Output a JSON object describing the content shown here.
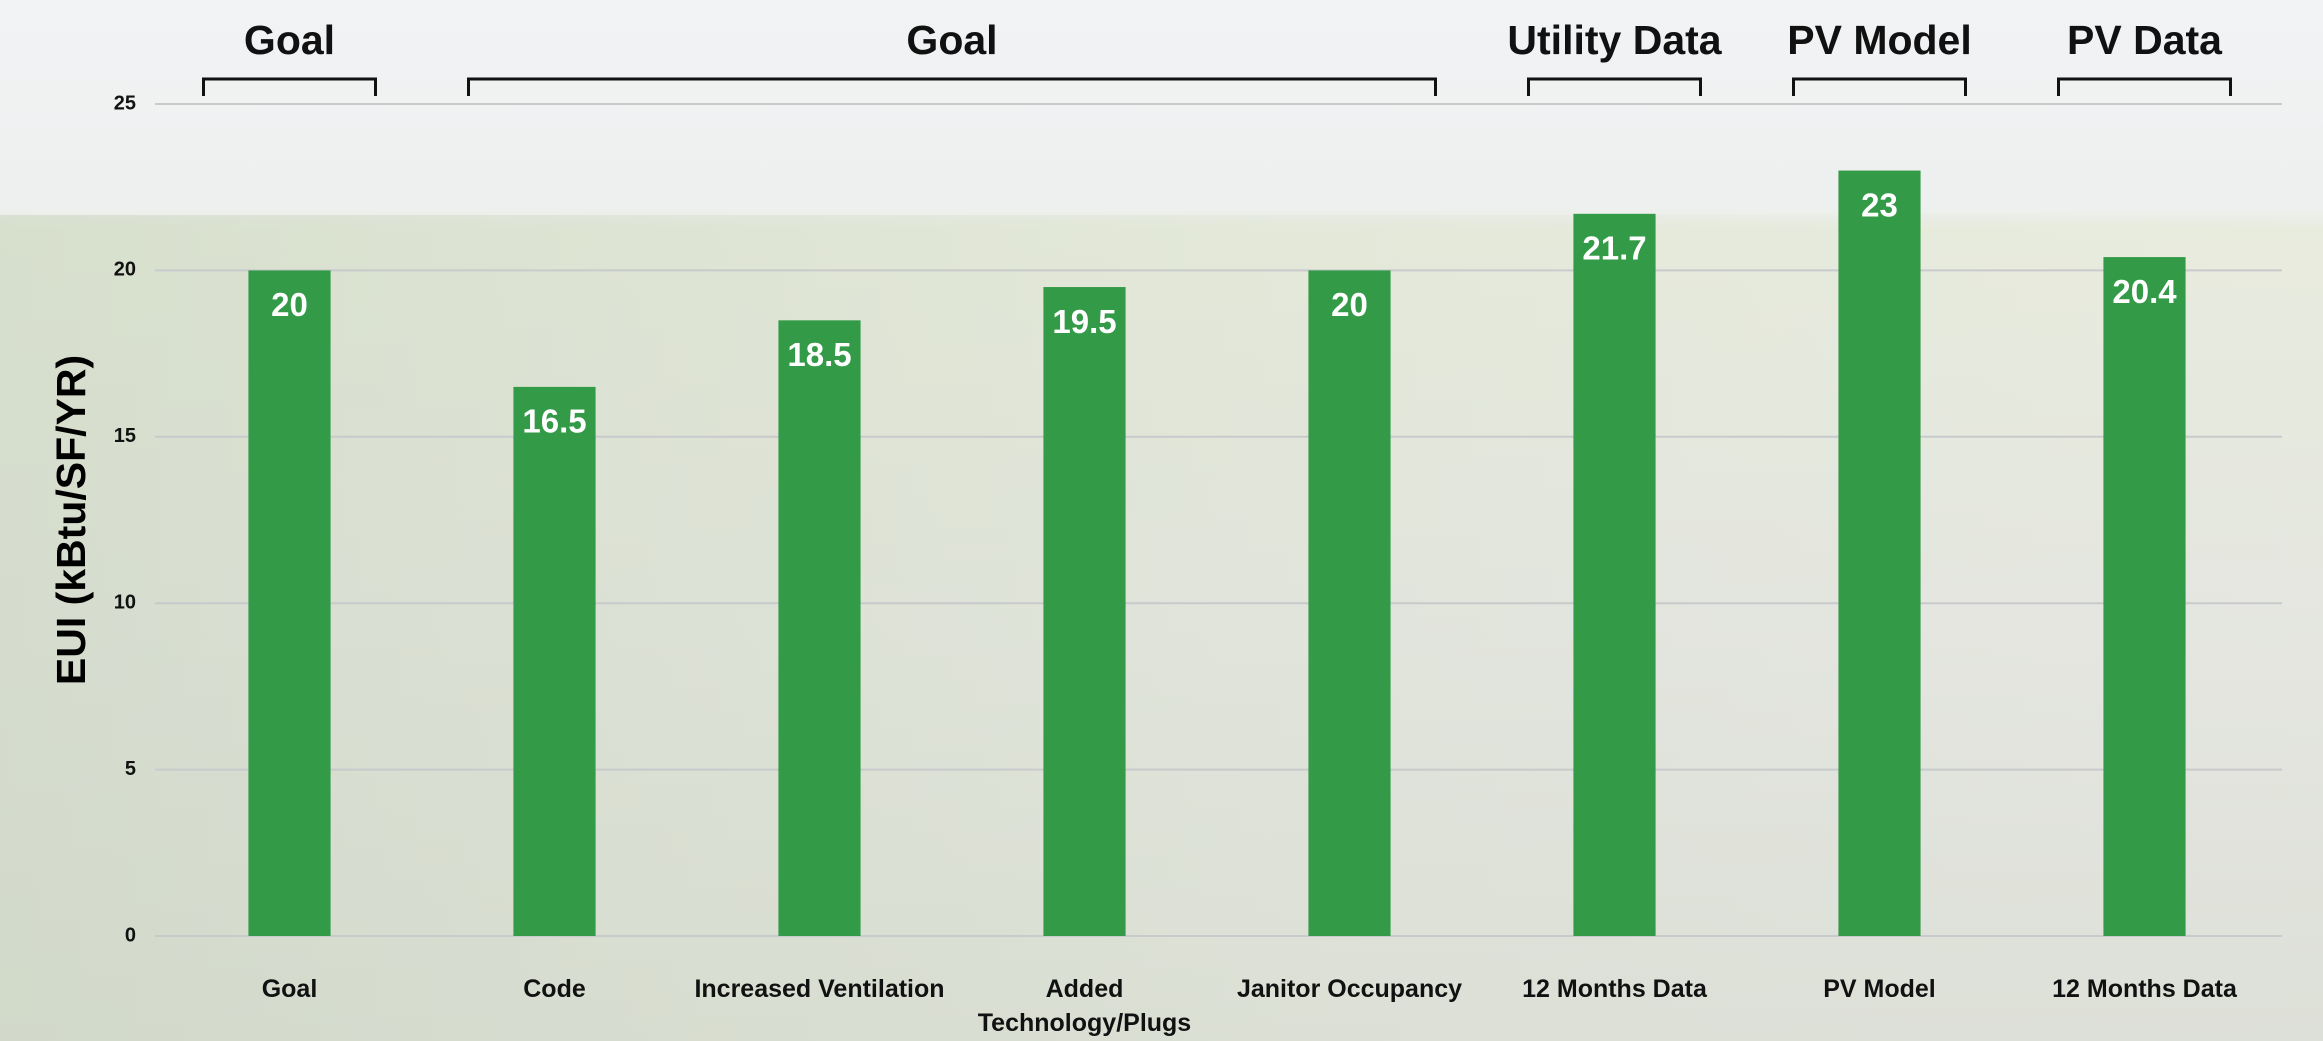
{
  "chart_data": {
    "type": "bar",
    "y_axis_label": "EUI  (kBtu/SF/YR)",
    "categories": [
      "Goal",
      "Code",
      "Increased Ventilation",
      "Added Technology/Plugs",
      "Janitor Occupancy",
      "12 Months Data",
      "PV Model",
      "12 Months Data"
    ],
    "values": [
      20,
      16.5,
      18.5,
      19.5,
      20,
      21.7,
      23,
      20.4
    ],
    "color": "#339a47",
    "ylim": [
      0,
      25
    ],
    "yticks": [
      0,
      5,
      10,
      15,
      20,
      25
    ],
    "grid": true,
    "annotations": [
      {
        "text": "Goal",
        "from": 0,
        "to": 0
      },
      {
        "text": "Goal",
        "from": 1,
        "to": 4
      },
      {
        "text": "Utility Data",
        "from": 5,
        "to": 5
      },
      {
        "text": "PV Model",
        "from": 6,
        "to": 6
      },
      {
        "text": "PV Data",
        "from": 7,
        "to": 7
      }
    ]
  }
}
